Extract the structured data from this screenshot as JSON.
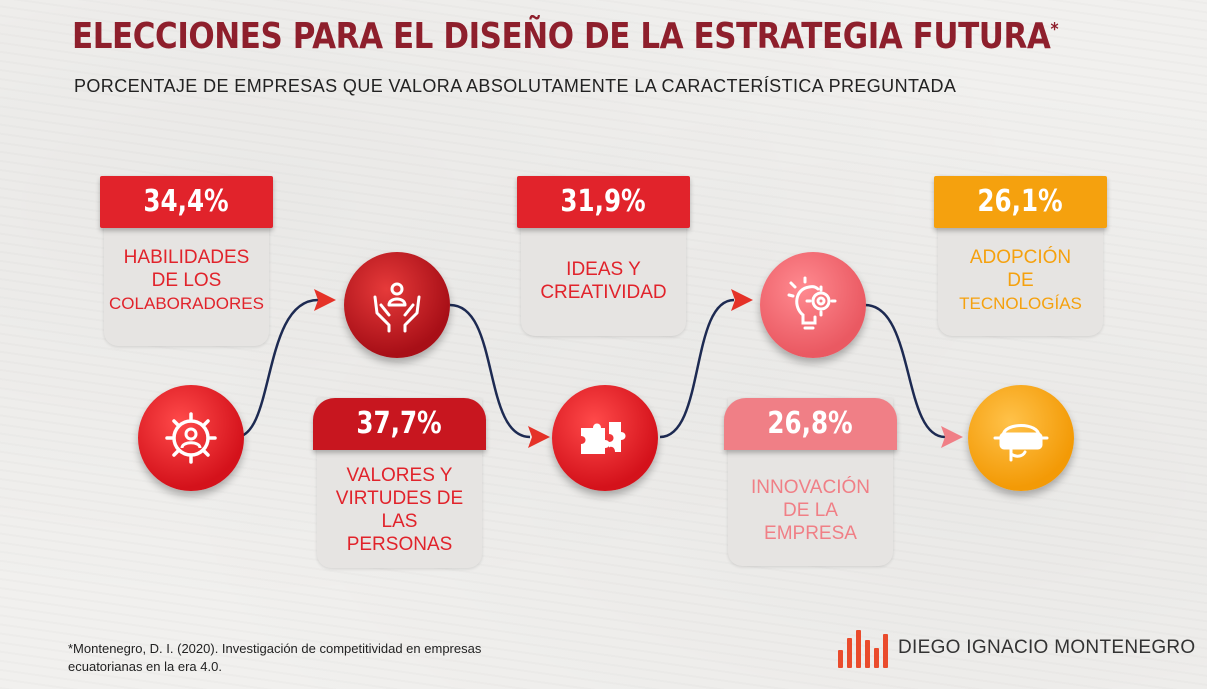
{
  "title": "ELECCIONES PARA EL DISEÑO DE LA ESTRATEGIA FUTURA",
  "title_mark": "*",
  "subtitle": "PORCENTAJE DE EMPRESAS QUE VALORA ABSOLUTAMENTE LA CARACTERÍSTICA PREGUNTADA",
  "items": [
    {
      "value": "34,4%",
      "label_lines": [
        "HABILIDADES",
        "DE LOS",
        "COLABORADORES"
      ],
      "icon": "gear-person-icon",
      "color": "#e1232b"
    },
    {
      "value": "37,7%",
      "label_lines": [
        "VALORES Y",
        "VIRTUDES DE",
        "LAS",
        "PERSONAS"
      ],
      "icon": "hands-person-icon",
      "color": "#c8161f"
    },
    {
      "value": "31,9%",
      "label_lines": [
        "IDEAS Y",
        "CREATIVIDAD"
      ],
      "icon": "puzzle-icon",
      "color": "#e1232b"
    },
    {
      "value": "26,8%",
      "label_lines": [
        "INNOVACIÓN",
        "DE LA",
        "EMPRESA"
      ],
      "icon": "bulb-gear-icon",
      "color": "#f07f86"
    },
    {
      "value": "26,1%",
      "label_lines": [
        "ADOPCIÓN",
        "DE",
        "TECNOLOGÍAS"
      ],
      "icon": "vr-headset-icon",
      "color": "#f5a10e"
    }
  ],
  "footnote": "*Montenegro, D. I. (2020). Investigación de competitividad en empresas ecuatorianas en la era 4.0.",
  "brand": "DIEGO IGNACIO MONTENEGRO",
  "colors": {
    "red": "#e1232b",
    "dark_red": "#8e1f2c",
    "pink": "#f07f86",
    "orange": "#f5a10e",
    "card_bg": "#e6e4e2"
  }
}
